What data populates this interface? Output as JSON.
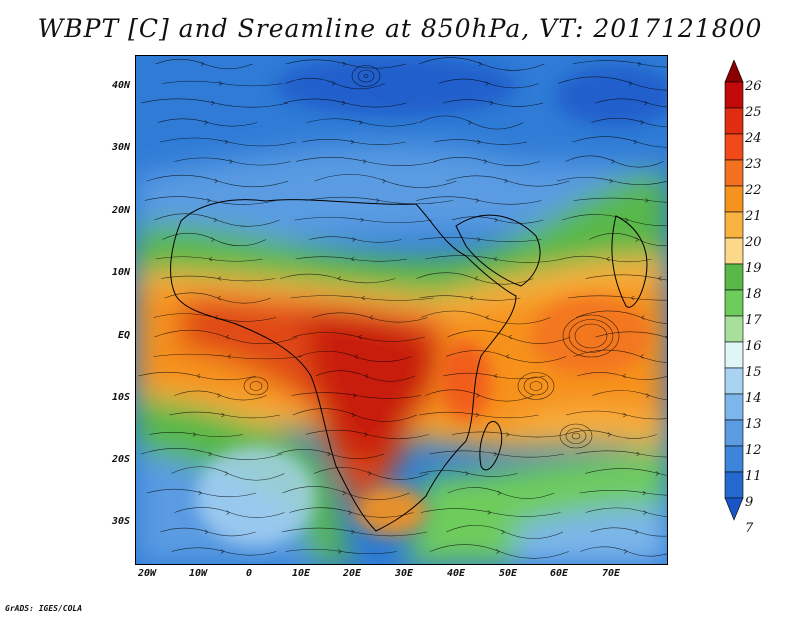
{
  "title": "WBPT [C] and Sreamline at 850hPa, VT: 2017121800",
  "credit": "GrADS: IGES/COLA",
  "map": {
    "lon_range": [
      -22,
      80
    ],
    "lat_range": [
      -36,
      45
    ],
    "lat_ticks": [
      {
        "value": 40,
        "label": "40N"
      },
      {
        "value": 30,
        "label": "30N"
      },
      {
        "value": 20,
        "label": "20N"
      },
      {
        "value": 10,
        "label": "10N"
      },
      {
        "value": 0,
        "label": "EQ"
      },
      {
        "value": -10,
        "label": "10S"
      },
      {
        "value": -20,
        "label": "20S"
      },
      {
        "value": -30,
        "label": "30S"
      }
    ],
    "lon_ticks": [
      {
        "value": -20,
        "label": "20W"
      },
      {
        "value": -10,
        "label": "10W"
      },
      {
        "value": 0,
        "label": "0"
      },
      {
        "value": 10,
        "label": "10E"
      },
      {
        "value": 20,
        "label": "20E"
      },
      {
        "value": 30,
        "label": "30E"
      },
      {
        "value": 40,
        "label": "40E"
      },
      {
        "value": 50,
        "label": "50E"
      },
      {
        "value": 60,
        "label": "60E"
      },
      {
        "value": 70,
        "label": "70E"
      }
    ]
  },
  "colorbar": {
    "levels": [
      "26",
      "25",
      "24",
      "23",
      "22",
      "21",
      "20",
      "19",
      "18",
      "17",
      "16",
      "15",
      "14",
      "13",
      "12",
      "11",
      "9",
      "7"
    ],
    "colors": [
      "#8a0000",
      "#c30a0a",
      "#e02d12",
      "#f04a1a",
      "#f37021",
      "#f6921e",
      "#f8b240",
      "#fbd88a",
      "#58b848",
      "#6ecc5c",
      "#a6e09a",
      "#e0f6f6",
      "#a9d3f3",
      "#7db6ea",
      "#5a9be2",
      "#3c85da",
      "#2569cf",
      "#1a55c7"
    ]
  },
  "colors": {
    "cold": "#2f7bd6",
    "cool": "#7db6ea",
    "green": "#58b848",
    "light_green": "#a6e09a",
    "yellow": "#fbd88a",
    "orange": "#f6921e",
    "red_orange": "#e04a18",
    "dark_red": "#c81e0c"
  }
}
